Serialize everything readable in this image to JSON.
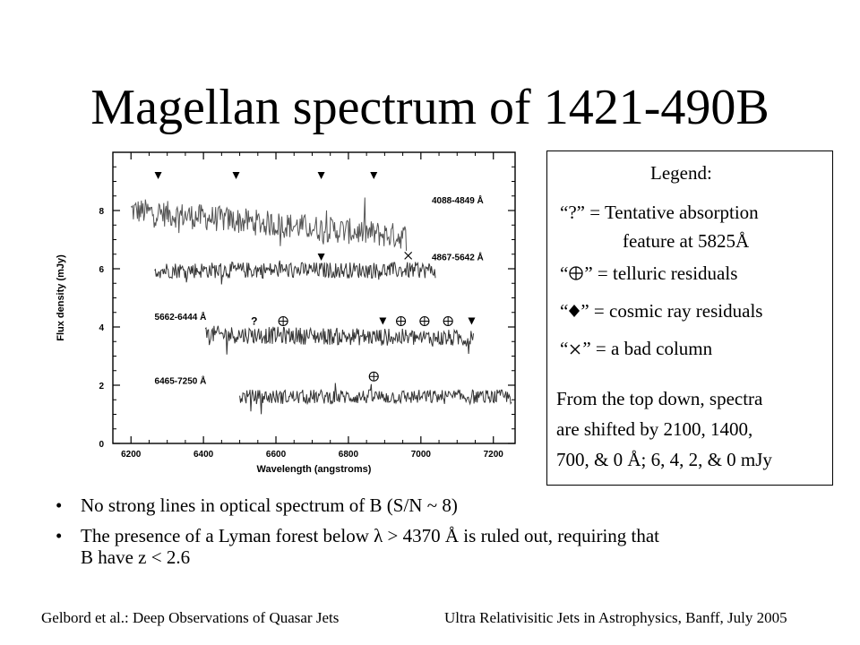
{
  "title": "Magellan spectrum of 1421-490B",
  "legend": {
    "header": "Legend:",
    "items": [
      {
        "symbol": "?",
        "text": "= Tentative absorption",
        "text2": "feature at 5825Å"
      },
      {
        "symbol": "telluric-icon",
        "text": "= telluric residuals"
      },
      {
        "symbol": "cosmic-ray-icon",
        "text": "= cosmic ray residuals"
      },
      {
        "symbol": "bad-column-icon",
        "text": "= a bad column"
      }
    ],
    "note": [
      "From the top down, spectra",
      "are shifted by 2100, 1400,",
      "700, & 0 Å; 6, 4, 2, & 0 mJy"
    ]
  },
  "bullets": [
    "No strong lines in optical spectrum of B (S/N ~ 8)",
    "The presence of a Lyman forest below λ > 4370 Å is ruled out, requiring that",
    "B have z < 2.6"
  ],
  "footer": {
    "left": "Gelbord et al.: Deep Observations of Quasar Jets",
    "right": "Ultra Relativisitic Jets in Astrophysics, Banff, July 2005"
  },
  "chart_data": {
    "type": "line",
    "xlabel": "Wavelength (angstroms)",
    "ylabel": "Flux density (mJy)",
    "xlim": [
      6150,
      7260
    ],
    "ylim": [
      0,
      10
    ],
    "xticks": [
      6200,
      6400,
      6600,
      6800,
      7000,
      7200
    ],
    "yticks": [
      0,
      2,
      4,
      6,
      8
    ],
    "grid": false,
    "series": [
      {
        "name": "4088-4849 Å",
        "x_range": [
          6200,
          6960
        ],
        "level": 8.0,
        "slope": -0.9,
        "noise": 0.45,
        "label_x": 7030,
        "label_y": 8.25
      },
      {
        "name": "4867-5642 Å",
        "x_range": [
          6265,
          7040
        ],
        "level": 5.95,
        "slope": 0,
        "noise": 0.28,
        "label_x": 7030,
        "label_y": 6.3
      },
      {
        "name": "5662-6444 Å",
        "x_range": [
          6405,
          7145
        ],
        "level": 3.75,
        "slope": -0.15,
        "noise": 0.3,
        "label_x": 6265,
        "label_y": 4.25
      },
      {
        "name": "6465-7250 Å",
        "x_range": [
          6500,
          7250
        ],
        "level": 1.6,
        "slope": 0,
        "noise": 0.25,
        "label_x": 6265,
        "label_y": 2.05
      }
    ],
    "markers": [
      {
        "type": "cosmic-ray",
        "x": 6275,
        "y": 9.2
      },
      {
        "type": "cosmic-ray",
        "x": 6490,
        "y": 9.2
      },
      {
        "type": "cosmic-ray",
        "x": 6725,
        "y": 9.2
      },
      {
        "type": "cosmic-ray",
        "x": 6870,
        "y": 9.2
      },
      {
        "type": "cosmic-ray",
        "x": 6725,
        "y": 6.4
      },
      {
        "type": "bad-column",
        "x": 6965,
        "y": 6.45
      },
      {
        "type": "tentative",
        "x": 6540,
        "y": 4.2
      },
      {
        "type": "telluric",
        "x": 6620,
        "y": 4.2
      },
      {
        "type": "cosmic-ray",
        "x": 6895,
        "y": 4.2
      },
      {
        "type": "telluric",
        "x": 6945,
        "y": 4.2
      },
      {
        "type": "telluric",
        "x": 7010,
        "y": 4.2
      },
      {
        "type": "telluric",
        "x": 7075,
        "y": 4.2
      },
      {
        "type": "cosmic-ray",
        "x": 7140,
        "y": 4.2
      },
      {
        "type": "telluric",
        "x": 6870,
        "y": 2.3
      }
    ]
  }
}
